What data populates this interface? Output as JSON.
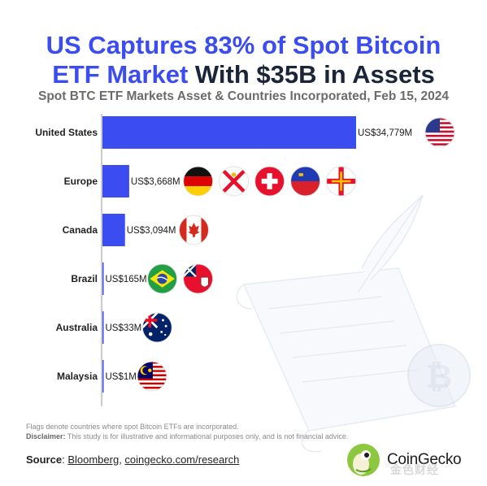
{
  "title": {
    "line1_blue": "US Captures 83% of Spot Bitcoin",
    "line2_blue": "ETF Market",
    "line2_dark": "With $35B in Assets"
  },
  "subtitle": "Spot BTC ETF Markets Asset & Countries Incorporated, Feb 15, 2024",
  "chart_data": {
    "type": "bar",
    "orientation": "horizontal",
    "categories": [
      "United States",
      "Europe",
      "Canada",
      "Brazil",
      "Australia",
      "Malaysia"
    ],
    "values": [
      34779,
      3668,
      3094,
      165,
      33,
      1
    ],
    "data_labels": [
      "US$34,779M",
      "US$3,668M",
      "US$3,094M",
      "US$165M",
      "US$33M",
      "US$1M"
    ],
    "unit": "US$M",
    "bar_color": "#3b4cf0",
    "grid": false,
    "flags": [
      [
        "us-flag-icon"
      ],
      [
        "germany-flag-icon",
        "jersey-flag-icon",
        "switzerland-flag-icon",
        "liechtenstein-flag-icon",
        "guernsey-flag-icon"
      ],
      [
        "canada-flag-icon"
      ],
      [
        "brazil-flag-icon",
        "bermuda-flag-icon"
      ],
      [
        "australia-flag-icon"
      ],
      [
        "malaysia-flag-icon"
      ]
    ]
  },
  "footnote": {
    "line1": "Flags denote countries where spot Bitcoin ETFs are incorporated.",
    "disclaimer_label": "Disclaimer:",
    "disclaimer_text": "This study is for illustrative and informational purposes only, and is not financial advice."
  },
  "source": {
    "label": "Source",
    "link1": "Bloomberg",
    "link2": "coingecko.com/research"
  },
  "brand": {
    "name": "CoinGecko",
    "watermark": "金色财经"
  },
  "colors": {
    "accent": "#3b4cf0",
    "dark": "#1a2638",
    "gecko_green": "#8dc63f"
  }
}
